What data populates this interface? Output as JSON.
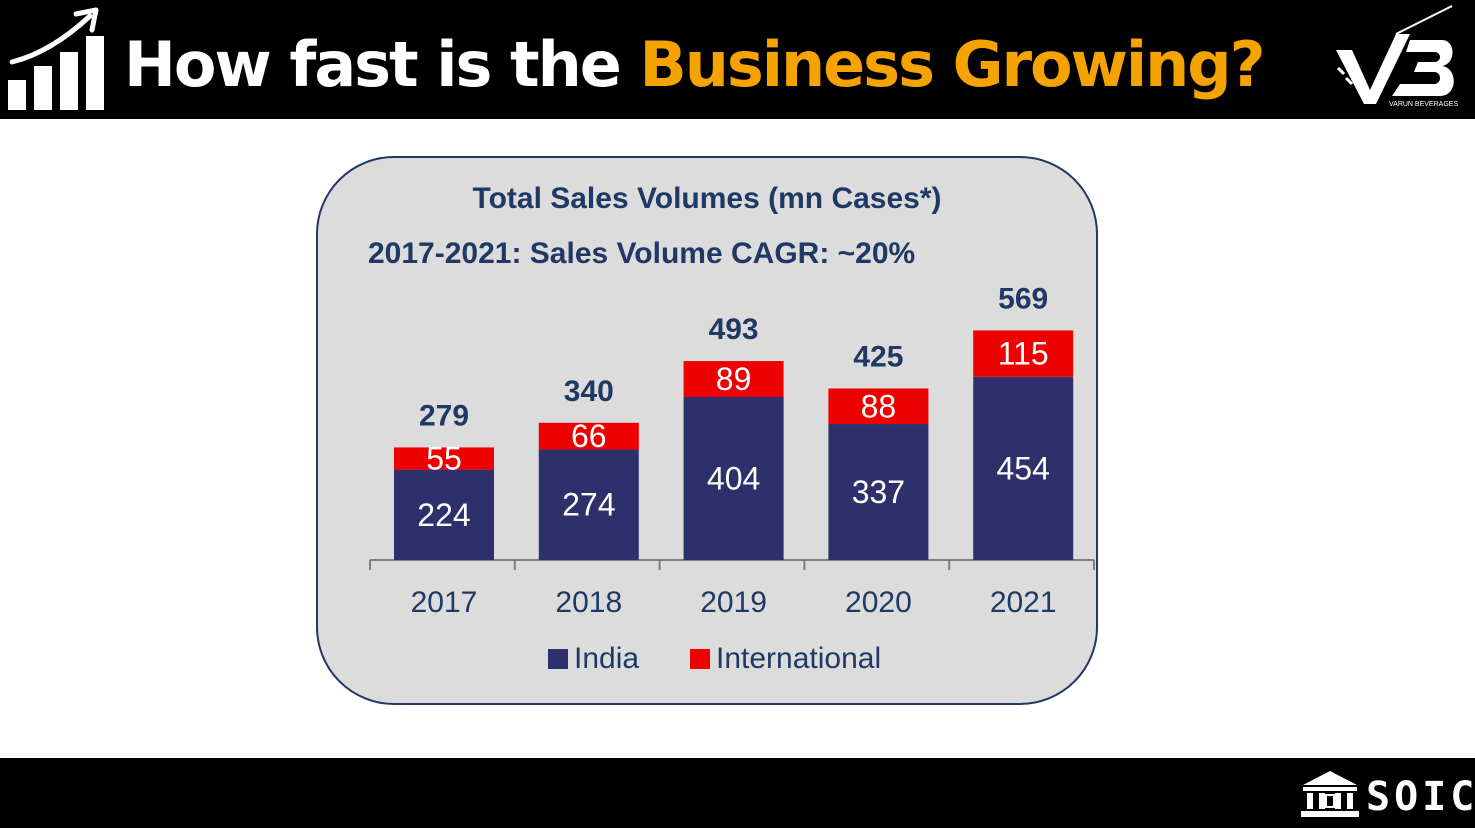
{
  "header": {
    "title_plain": "How fast is the ",
    "title_highlight": "Business Growing?",
    "brand_caption": "VARUN BEVERAGES"
  },
  "footer": {
    "brand": "SOIC"
  },
  "colors": {
    "india": "#2e306b",
    "international": "#ee0000",
    "title_highlight": "#f5a300",
    "panel": "#dcdcdc"
  },
  "chart_data": {
    "type": "bar",
    "stacked": true,
    "title": "Total Sales Volumes (mn Cases*)",
    "subtitle": "2017-2021: Sales Volume CAGR: ~20%",
    "xlabel": "",
    "ylabel": "",
    "categories": [
      "2017",
      "2018",
      "2019",
      "2020",
      "2021"
    ],
    "series": [
      {
        "name": "India",
        "values": [
          224,
          274,
          404,
          337,
          454
        ]
      },
      {
        "name": "International",
        "values": [
          55,
          66,
          89,
          88,
          115
        ]
      }
    ],
    "totals": [
      279,
      340,
      493,
      425,
      569
    ],
    "ylim": [
      0,
      600
    ],
    "grid": false,
    "legend": "bottom"
  }
}
